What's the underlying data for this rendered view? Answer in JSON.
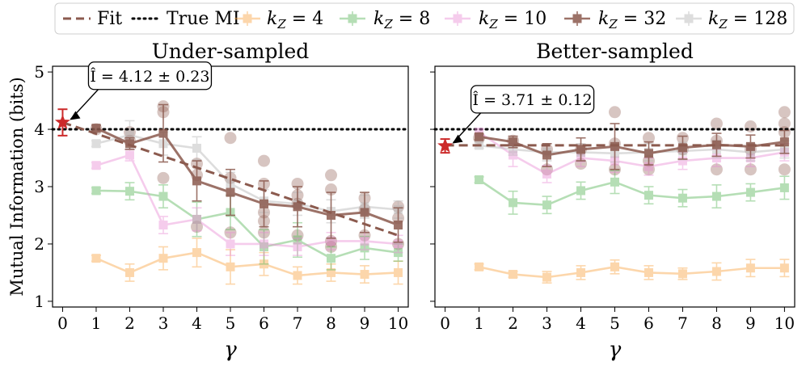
{
  "colors": {
    "k4": "#f9a646",
    "k8": "#5cb85c",
    "k10": "#ea8fd7",
    "k32": "#8b5a4e",
    "k128": "#b5b5b5",
    "estimate": "#cc2a2a",
    "fit": "#8b5a4e",
    "truth": "#000000"
  },
  "legend": {
    "fit": "Fit",
    "true_mi": "True MI",
    "k4": "k_Z = 4",
    "k8": "k_Z = 8",
    "k10": "k_Z = 10",
    "k32": "k_Z = 32",
    "k128": "k_Z = 128",
    "placement": "top-center"
  },
  "chart_data": [
    {
      "type": "line",
      "title": "Under-sampled",
      "xlabel": "γ",
      "ylabel": "Mutual Information (bits)",
      "xlim": [
        -0.3,
        10.3
      ],
      "ylim": [
        0.9,
        5.1
      ],
      "xticks": [
        "0",
        "1",
        "2",
        "3",
        "4",
        "5",
        "6",
        "7",
        "8",
        "9",
        "10"
      ],
      "yticks": [
        "1",
        "2",
        "3",
        "4",
        "5"
      ],
      "true_mi": 4,
      "annotation": "Î = 4.12 ± 0.23",
      "estimate": {
        "x": 0,
        "y": 4.12,
        "err": 0.23
      },
      "fit": {
        "x": [
          0,
          10
        ],
        "y": [
          4.12,
          2.15
        ]
      },
      "x": [
        1,
        2,
        3,
        4,
        5,
        6,
        7,
        8,
        9,
        10
      ],
      "series": [
        {
          "key": "k4",
          "values": [
            1.75,
            1.5,
            1.75,
            1.85,
            1.6,
            1.65,
            1.45,
            1.5,
            1.47,
            1.5
          ],
          "err": [
            0.05,
            0.15,
            0.2,
            0.25,
            0.3,
            0.2,
            0.15,
            0.15,
            0.15,
            0.2
          ]
        },
        {
          "key": "k8",
          "values": [
            2.93,
            2.92,
            2.83,
            2.43,
            2.55,
            1.95,
            2.07,
            1.75,
            1.93,
            1.85
          ],
          "err": [
            0.05,
            0.15,
            0.2,
            0.3,
            0.3,
            0.3,
            0.3,
            0.2,
            0.2,
            0.15
          ]
        },
        {
          "key": "k10",
          "values": [
            3.37,
            3.55,
            2.33,
            2.43,
            2.0,
            2.0,
            1.95,
            2.05,
            2.05,
            2.0
          ],
          "err": [
            0.05,
            0.1,
            0.15,
            0.2,
            0.2,
            0.2,
            0.15,
            0.15,
            0.15,
            0.15
          ]
        },
        {
          "key": "k32",
          "values": [
            4.02,
            3.75,
            3.93,
            3.1,
            2.9,
            2.7,
            2.65,
            2.5,
            2.55,
            2.33
          ],
          "err": [
            0.05,
            0.1,
            0.5,
            0.35,
            0.4,
            0.4,
            0.35,
            0.4,
            0.35,
            0.3
          ]
        },
        {
          "key": "k128",
          "values": [
            3.75,
            3.9,
            3.75,
            3.67,
            3.05,
            2.75,
            2.7,
            2.57,
            2.65,
            2.6
          ],
          "err": [
            0.05,
            0.25,
            0.2,
            0.2,
            0.2,
            0.2,
            0.2,
            0.2,
            0.2,
            0.15
          ]
        }
      ],
      "samples": [
        [
          1,
          4.0
        ],
        [
          2,
          3.8
        ],
        [
          2,
          3.95
        ],
        [
          3,
          3.15
        ],
        [
          3,
          4.3
        ],
        [
          3,
          4.4
        ],
        [
          4,
          3.4
        ],
        [
          4,
          3.2
        ],
        [
          4,
          2.3
        ],
        [
          5,
          3.85
        ],
        [
          5,
          3.15
        ],
        [
          5,
          2.2
        ],
        [
          6,
          3.45
        ],
        [
          6,
          3.05
        ],
        [
          6,
          2.55
        ],
        [
          6,
          2.4
        ],
        [
          6,
          2.2
        ],
        [
          7,
          3.05
        ],
        [
          7,
          2.85
        ],
        [
          7,
          2.7
        ],
        [
          7,
          2.15
        ],
        [
          8,
          3.2
        ],
        [
          8,
          2.95
        ],
        [
          8,
          2.05
        ],
        [
          8,
          1.95
        ],
        [
          9,
          2.8
        ],
        [
          9,
          2.6
        ],
        [
          9,
          2.15
        ],
        [
          10,
          2.65
        ],
        [
          10,
          2.45
        ],
        [
          10,
          2.0
        ]
      ]
    },
    {
      "type": "line",
      "title": "Better-sampled",
      "xlabel": "γ",
      "ylabel": "",
      "xlim": [
        -0.3,
        10.3
      ],
      "ylim": [
        0.9,
        5.1
      ],
      "xticks": [
        "0",
        "1",
        "2",
        "3",
        "4",
        "5",
        "6",
        "7",
        "8",
        "9",
        "10"
      ],
      "yticks": [],
      "true_mi": 4,
      "annotation": "Î = 3.71 ± 0.12",
      "estimate": {
        "x": 0,
        "y": 3.71,
        "err": 0.12
      },
      "fit": {
        "x": [
          0,
          10
        ],
        "y": [
          3.72,
          3.72
        ]
      },
      "x": [
        1,
        2,
        3,
        4,
        5,
        6,
        7,
        8,
        9,
        10
      ],
      "series": [
        {
          "key": "k4",
          "values": [
            1.6,
            1.47,
            1.42,
            1.5,
            1.6,
            1.5,
            1.48,
            1.52,
            1.58,
            1.58
          ],
          "err": [
            0.05,
            0.05,
            0.1,
            0.12,
            0.12,
            0.12,
            0.1,
            0.15,
            0.15,
            0.15
          ]
        },
        {
          "key": "k8",
          "values": [
            3.12,
            2.72,
            2.68,
            2.93,
            3.08,
            2.85,
            2.8,
            2.83,
            2.9,
            2.98
          ],
          "err": [
            0.05,
            0.2,
            0.15,
            0.15,
            0.2,
            0.15,
            0.15,
            0.2,
            0.15,
            0.2
          ]
        },
        {
          "key": "k10",
          "values": [
            3.95,
            3.55,
            3.22,
            3.5,
            3.45,
            3.35,
            3.45,
            3.5,
            3.5,
            3.6
          ],
          "err": [
            0.05,
            0.2,
            0.15,
            0.15,
            0.2,
            0.15,
            0.15,
            0.15,
            0.15,
            0.15
          ]
        },
        {
          "key": "k32",
          "values": [
            3.87,
            3.78,
            3.55,
            3.65,
            3.7,
            3.58,
            3.68,
            3.73,
            3.7,
            3.78
          ],
          "err": [
            0.05,
            0.1,
            0.2,
            0.2,
            0.4,
            0.2,
            0.2,
            0.2,
            0.2,
            0.2
          ]
        },
        {
          "key": "k128",
          "values": [
            3.72,
            3.65,
            3.6,
            3.6,
            3.58,
            3.6,
            3.62,
            3.65,
            3.6,
            3.65
          ],
          "err": [
            0.05,
            0.1,
            0.15,
            0.15,
            0.15,
            0.15,
            0.15,
            0.15,
            0.15,
            0.15
          ]
        }
      ],
      "samples": [
        [
          1,
          3.85
        ],
        [
          2,
          3.8
        ],
        [
          3,
          3.65
        ],
        [
          3,
          3.3
        ],
        [
          4,
          3.65
        ],
        [
          4,
          3.4
        ],
        [
          5,
          4.3
        ],
        [
          5,
          3.75
        ],
        [
          5,
          3.3
        ],
        [
          6,
          3.85
        ],
        [
          6,
          3.45
        ],
        [
          6,
          3.3
        ],
        [
          7,
          3.85
        ],
        [
          7,
          3.65
        ],
        [
          8,
          4.1
        ],
        [
          8,
          3.8
        ],
        [
          8,
          3.3
        ],
        [
          9,
          4.05
        ],
        [
          9,
          3.65
        ],
        [
          9,
          3.3
        ],
        [
          10,
          4.3
        ],
        [
          10,
          4.1
        ],
        [
          10,
          3.95
        ],
        [
          10,
          3.3
        ]
      ]
    }
  ]
}
